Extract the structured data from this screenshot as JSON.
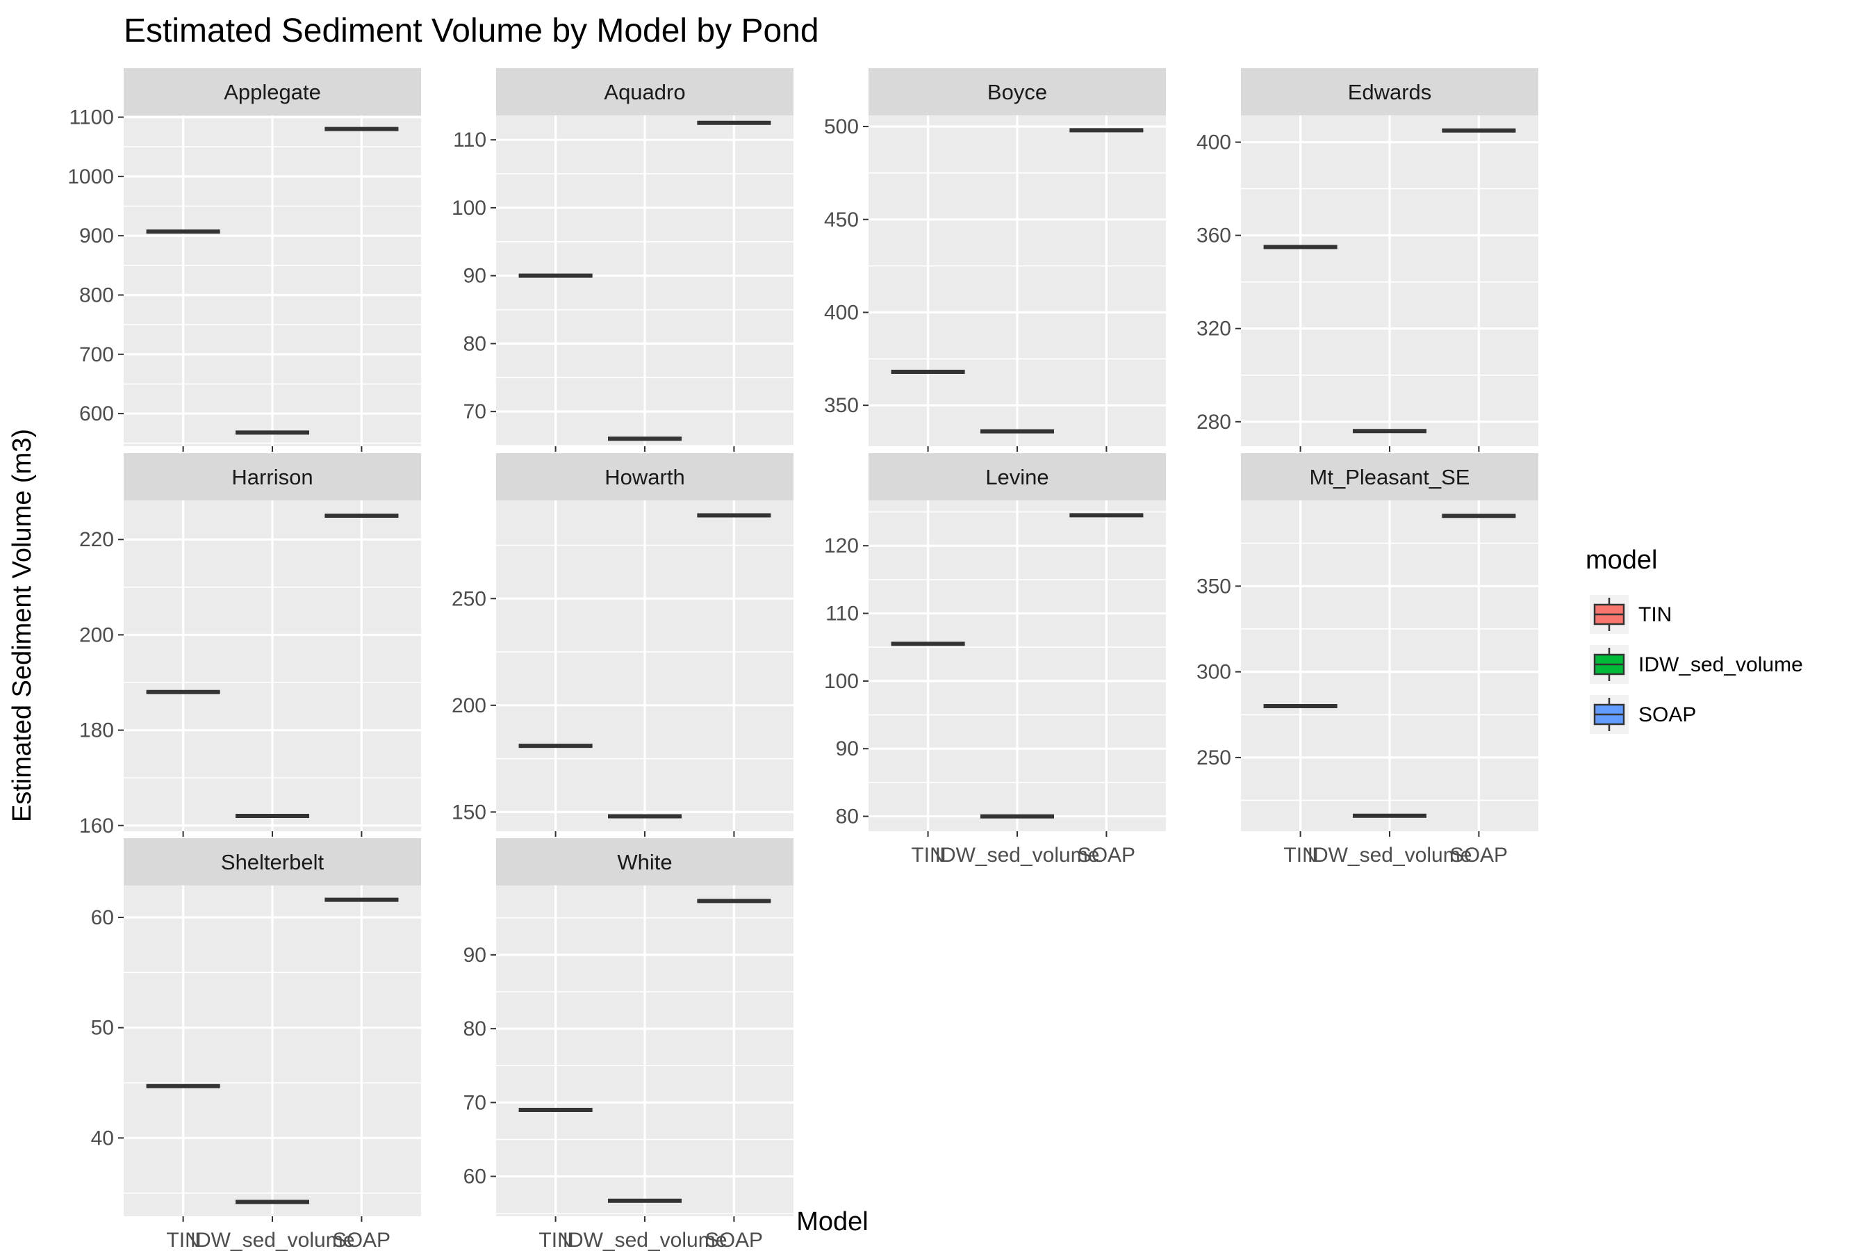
{
  "chart_data": {
    "type": "boxplot",
    "title": "Estimated Sediment Volume by Model by Pond",
    "xlabel": "Model",
    "ylabel": "Estimated Sediment Volume (m3)",
    "categories": [
      "TIN",
      "IDW_sed_volume",
      "SOAP"
    ],
    "facet_by": "pond",
    "facet_layout": {
      "columns": 4,
      "scales": "free_y"
    },
    "grid": true,
    "legend": {
      "title": "model",
      "placement": "right",
      "entries": [
        {
          "label": "TIN",
          "color": "#F8766D"
        },
        {
          "label": "IDW_sed_volume",
          "color": "#00BA38"
        },
        {
          "label": "SOAP",
          "color": "#619CFF"
        }
      ]
    },
    "panels": [
      {
        "name": "Applegate",
        "values": [
          907,
          568,
          1080
        ],
        "ylim": [
          545,
          1103
        ],
        "yticks": [
          600,
          700,
          800,
          900,
          1000,
          1100
        ]
      },
      {
        "name": "Aquadro",
        "values": [
          90,
          66,
          112.5
        ],
        "ylim": [
          64.9,
          113.6
        ],
        "yticks": [
          70,
          80,
          90,
          100,
          110
        ]
      },
      {
        "name": "Boyce",
        "values": [
          368,
          336,
          498
        ],
        "ylim": [
          328,
          506
        ],
        "yticks": [
          350,
          400,
          450,
          500
        ]
      },
      {
        "name": "Edwards",
        "values": [
          355,
          276,
          405
        ],
        "ylim": [
          269.5,
          411.5
        ],
        "yticks": [
          280,
          320,
          360,
          400
        ]
      },
      {
        "name": "Harrison",
        "values": [
          188,
          162,
          225
        ],
        "ylim": [
          158.8,
          228.2
        ],
        "yticks": [
          160,
          180,
          200,
          220
        ]
      },
      {
        "name": "Howarth",
        "values": [
          181,
          148,
          289
        ],
        "ylim": [
          141,
          296
        ],
        "yticks": [
          150,
          200,
          250
        ]
      },
      {
        "name": "Levine",
        "values": [
          105.5,
          80,
          124.5
        ],
        "ylim": [
          77.8,
          126.7
        ],
        "yticks": [
          80,
          90,
          100,
          110,
          120
        ]
      },
      {
        "name": "Mt_Pleasant_SE",
        "values": [
          280,
          216,
          391
        ],
        "ylim": [
          207,
          400
        ],
        "yticks": [
          250,
          300,
          350
        ]
      },
      {
        "name": "Shelterbelt",
        "values": [
          44.7,
          34.2,
          61.6
        ],
        "ylim": [
          32.9,
          62.9
        ],
        "yticks": [
          40,
          50,
          60
        ]
      },
      {
        "name": "White",
        "values": [
          69,
          56.7,
          97.3
        ],
        "ylim": [
          54.6,
          99.4
        ],
        "yticks": [
          60,
          70,
          80,
          90
        ]
      }
    ]
  }
}
